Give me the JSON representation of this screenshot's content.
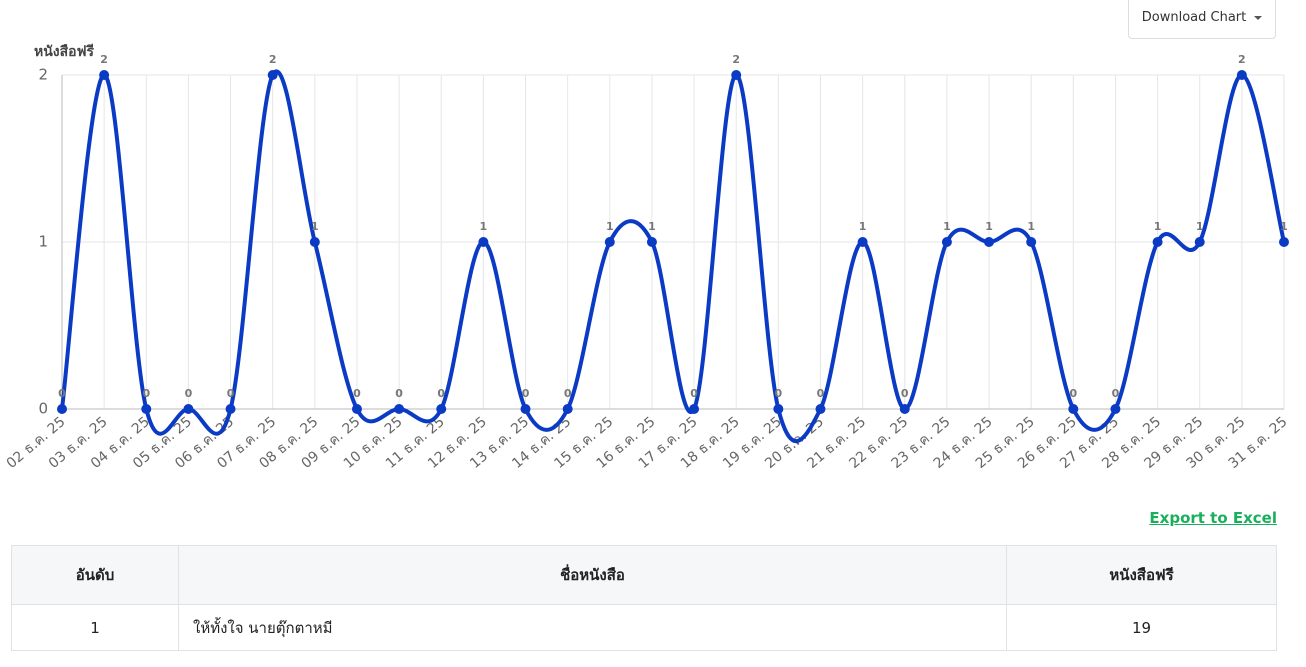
{
  "toolbar": {
    "download_button": "Download Chart"
  },
  "chart_data": {
    "type": "line",
    "y_axis_title": "หนังสือฟรี",
    "categories": [
      "02 ธ.ค. 25",
      "03 ธ.ค. 25",
      "04 ธ.ค. 25",
      "05 ธ.ค. 25",
      "06 ธ.ค. 25",
      "07 ธ.ค. 25",
      "08 ธ.ค. 25",
      "09 ธ.ค. 25",
      "10 ธ.ค. 25",
      "11 ธ.ค. 25",
      "12 ธ.ค. 25",
      "13 ธ.ค. 25",
      "14 ธ.ค. 25",
      "15 ธ.ค. 25",
      "16 ธ.ค. 25",
      "17 ธ.ค. 25",
      "18 ธ.ค. 25",
      "19 ธ.ค. 25",
      "20 ธ.ค. 25",
      "21 ธ.ค. 25",
      "22 ธ.ค. 25",
      "23 ธ.ค. 25",
      "24 ธ.ค. 25",
      "25 ธ.ค. 25",
      "26 ธ.ค. 25",
      "27 ธ.ค. 25",
      "28 ธ.ค. 25",
      "29 ธ.ค. 25",
      "30 ธ.ค. 25",
      "31 ธ.ค. 25"
    ],
    "values": [
      0,
      2,
      0,
      0,
      0,
      2,
      1,
      0,
      0,
      0,
      1,
      0,
      0,
      1,
      1,
      0,
      2,
      0,
      0,
      1,
      0,
      1,
      1,
      1,
      0,
      0,
      1,
      1,
      2,
      1
    ],
    "color": "#0b3bc4",
    "ylim": [
      0,
      2
    ],
    "yticks": [
      0,
      1,
      2
    ],
    "grid": true,
    "data_labels": true
  },
  "export_link": "Export to Excel",
  "table": {
    "headers": [
      "อันดับ",
      "ชื่อหนังสือ",
      "หนังสือฟรี"
    ],
    "rows": [
      [
        1,
        "ให้ทั้งใจ นายตุ๊กตาหมี",
        19
      ]
    ]
  }
}
